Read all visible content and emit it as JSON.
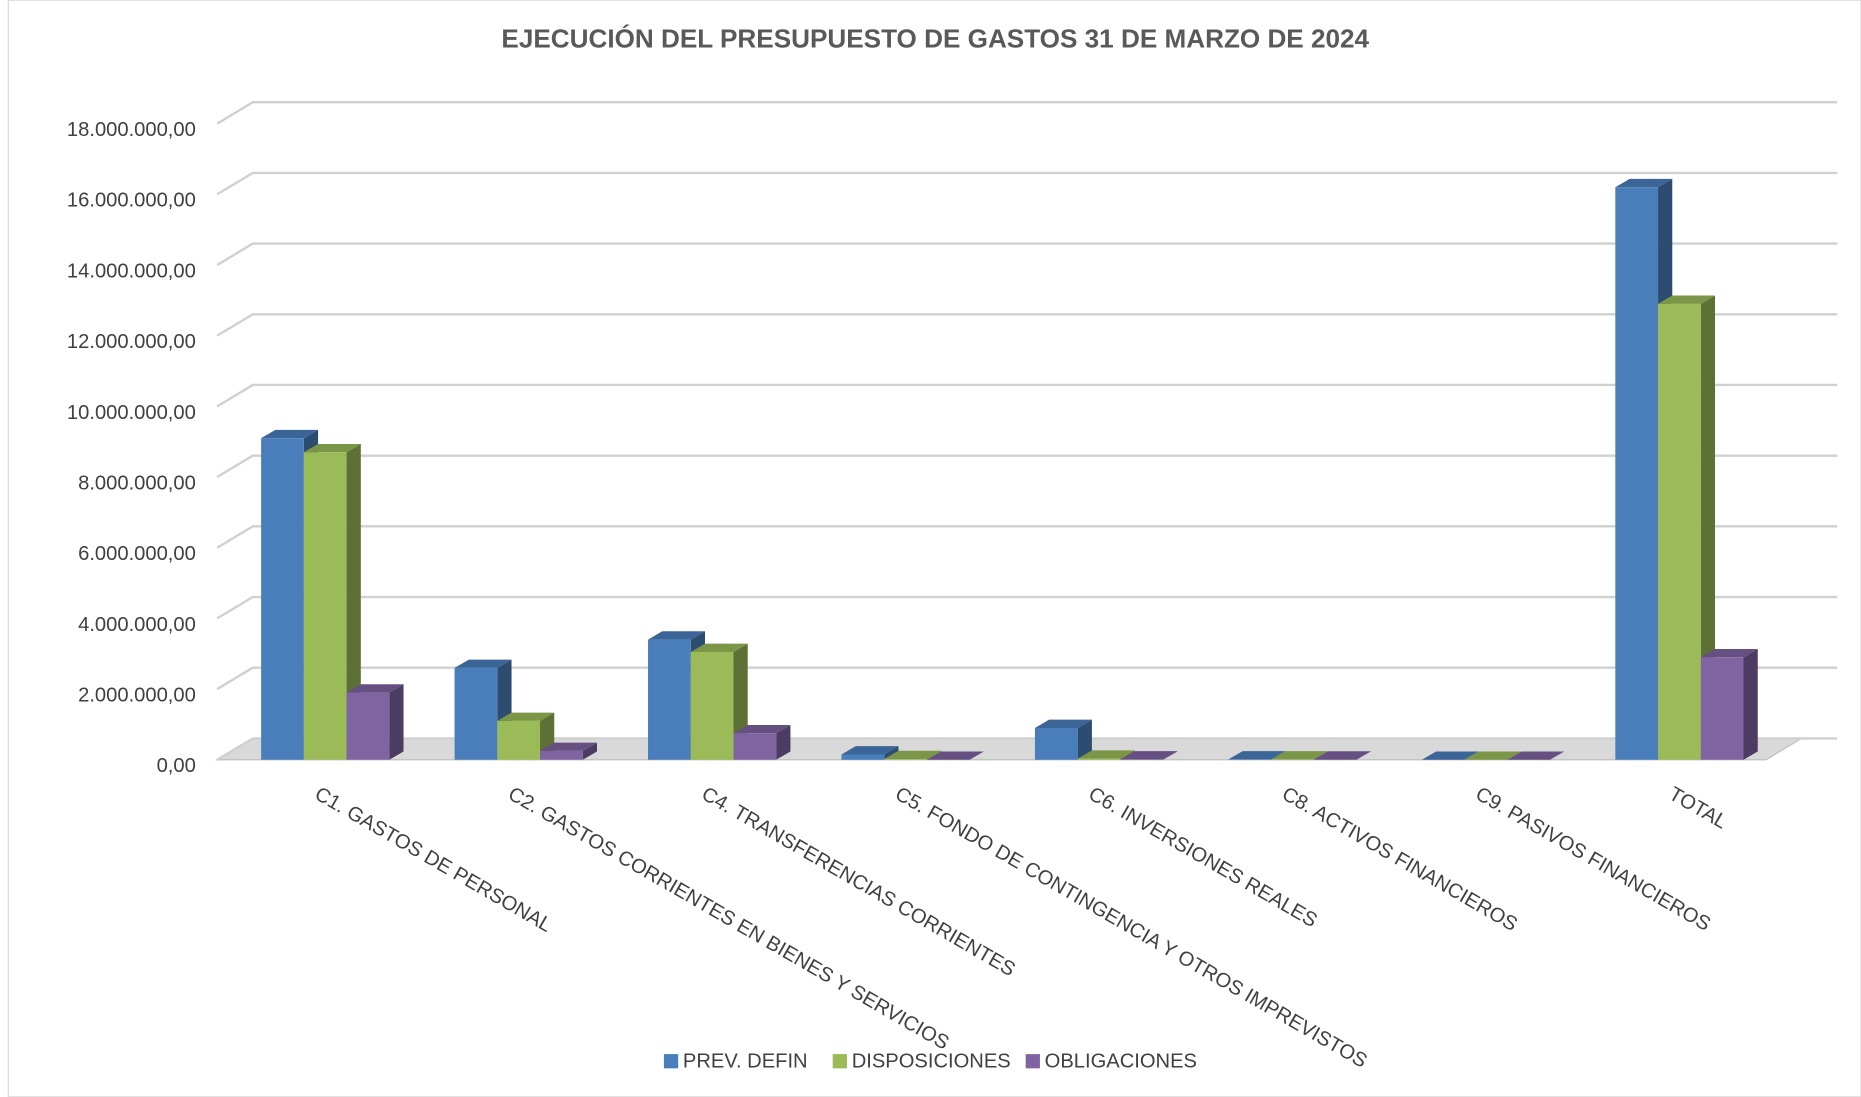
{
  "chart_data": {
    "type": "bar3d",
    "title": "EJECUCIÓN DEL PRESUPUESTO DE GASTOS 31 DE MARZO DE 2024",
    "categories": [
      "C1. GASTOS DE PERSONAL",
      "C2. GASTOS CORRIENTES EN BIENES Y SERVICIOS",
      "C4. TRANSFERENCIAS CORRIENTES",
      "C5. FONDO DE CONTINGENCIA Y OTROS IMPREVISTOS",
      "C6. INVERSIONES REALES",
      "C8. ACTIVOS FINANCIEROS",
      "C9. PASIVOS FINANCIEROS",
      "TOTAL"
    ],
    "series": [
      {
        "name": "PREV. DEFIN",
        "color": "#4a7ebb",
        "values": [
          9100000,
          2600000,
          3400000,
          150000,
          900000,
          10000,
          0,
          16200000
        ]
      },
      {
        "name": "DISPOSICIONES",
        "color": "#9bbb59",
        "values": [
          8700000,
          1100000,
          3050000,
          20000,
          30000,
          10000,
          0,
          12900000
        ]
      },
      {
        "name": "OBLIGACIONES",
        "color": "#8064a2",
        "values": [
          1900000,
          250000,
          750000,
          0,
          10000,
          5000,
          0,
          2900000
        ]
      }
    ],
    "ylim": [
      0,
      18000000
    ],
    "yticks": [
      {
        "value": 0,
        "label": "0,00"
      },
      {
        "value": 2000000,
        "label": "2.000.000,00"
      },
      {
        "value": 4000000,
        "label": "4.000.000,00"
      },
      {
        "value": 6000000,
        "label": "6.000.000,00"
      },
      {
        "value": 8000000,
        "label": "8.000.000,00"
      },
      {
        "value": 10000000,
        "label": "10.000.000,00"
      },
      {
        "value": 12000000,
        "label": "12.000.000,00"
      },
      {
        "value": 14000000,
        "label": "14.000.000,00"
      },
      {
        "value": 16000000,
        "label": "16.000.000,00"
      },
      {
        "value": 18000000,
        "label": "18.000.000,00"
      }
    ],
    "grid": true,
    "legend": "bottom"
  }
}
